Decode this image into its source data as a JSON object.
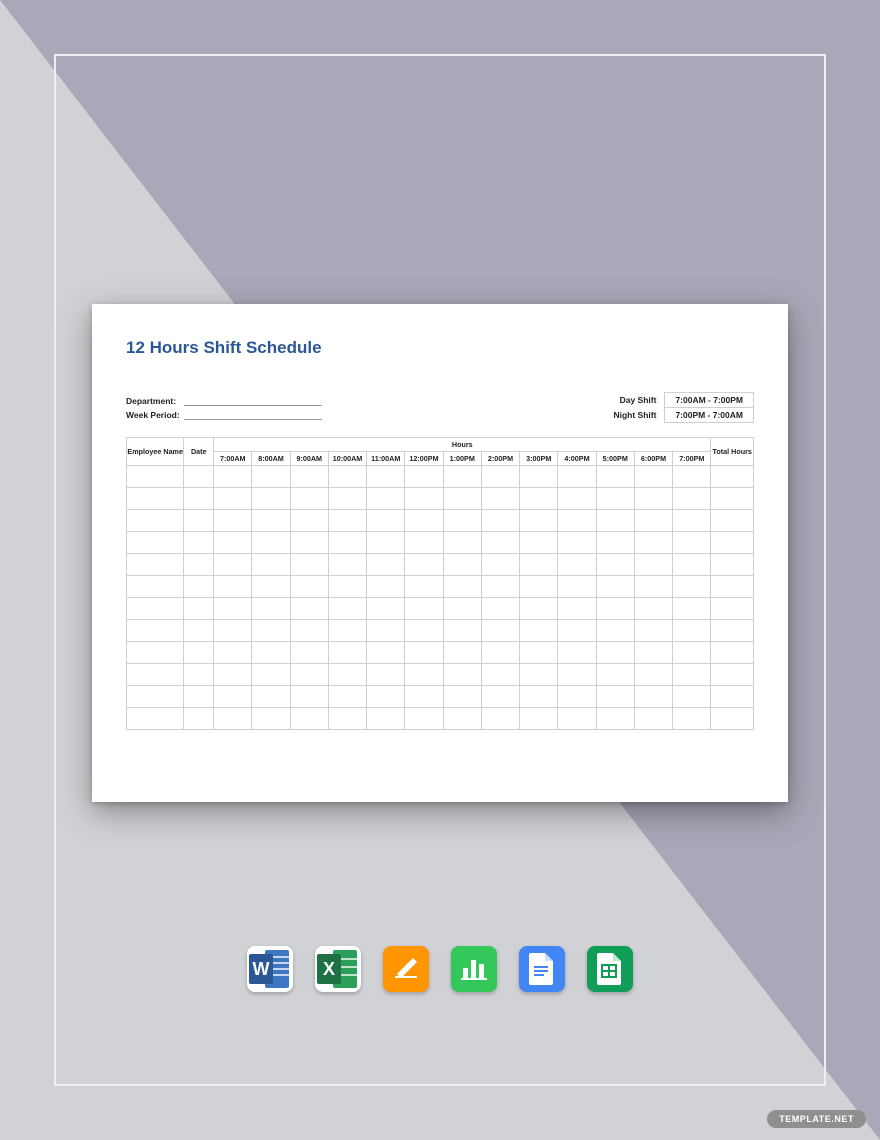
{
  "page": {
    "bg_top": "#aaa7b8",
    "bg_diag": "#d1d2d6",
    "frame_border": "#efeef3",
    "badge_text": "TEMPLATE.NET"
  },
  "doc": {
    "title": "12 Hours Shift Schedule",
    "title_color": "#2b5797",
    "meta_left": {
      "department_label": "Department:",
      "week_period_label": "Week Period:"
    },
    "meta_right": {
      "day_label": "Day Shift",
      "day_value": "7:00AM - 7:00PM",
      "night_label": "Night Shift",
      "night_value": "7:00PM - 7:00AM"
    },
    "table": {
      "col_employee": "Employee Name",
      "col_date": "Date",
      "col_hours_group": "Hours",
      "col_total": "Total Hours",
      "hours": [
        "7:00AM",
        "8:00AM",
        "9:00AM",
        "10:00AM",
        "11:00AM",
        "12:00PM",
        "1:00PM",
        "2:00PM",
        "3:00PM",
        "4:00PM",
        "5:00PM",
        "6:00PM",
        "7:00PM"
      ],
      "empty_rows": 12,
      "border_color": "#d0d0d0"
    }
  },
  "icons": {
    "word": {
      "bg1": "#2b5797",
      "bg2": "#3e76c2",
      "letter": "W"
    },
    "excel": {
      "bg1": "#1e7145",
      "bg2": "#2e9e5b",
      "letter": "X"
    },
    "pages": {
      "bg": "#ff9500"
    },
    "numbers": {
      "bg": "#34c759"
    },
    "gdocs": {
      "bg": "#4285f4"
    },
    "gsheets": {
      "bg": "#0f9d58"
    }
  }
}
